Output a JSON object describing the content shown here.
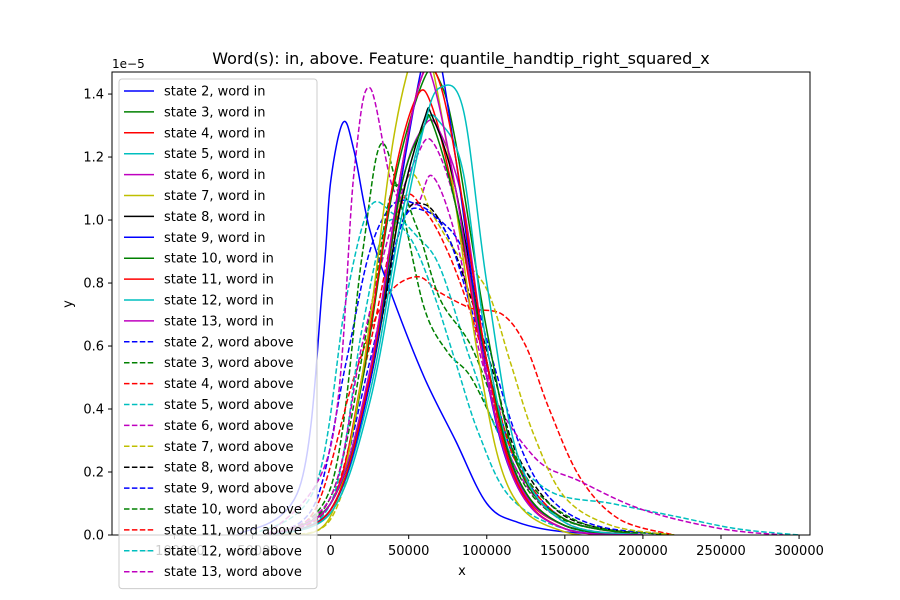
{
  "chart_data": {
    "type": "line",
    "title": "Word(s): in, above. Feature: quantile_handtip_right_squared_x",
    "xlabel": "x",
    "ylabel": "y",
    "y_offset_label": "1e−5",
    "xlim": [
      -140000,
      307000
    ],
    "ylim": [
      0,
      1.47
    ],
    "x_ticks": [
      0,
      50000,
      100000,
      150000,
      200000,
      250000,
      300000
    ],
    "x_tick_labels": [
      "0",
      "50000",
      "100000",
      "150000",
      "200000",
      "250000",
      "300000"
    ],
    "partially_hidden_x_tick_labels": [
      "−100000",
      "−50000"
    ],
    "y_ticks": [
      0.0,
      0.2,
      0.4,
      0.6,
      0.8,
      1.0,
      1.2,
      1.4
    ],
    "y_tick_labels": [
      "0.0",
      "0.2",
      "0.4",
      "0.6",
      "0.8",
      "1.0",
      "1.2",
      "1.4"
    ],
    "grid": false,
    "legend_position": "top-left",
    "series": [
      {
        "name": "state 2, word in",
        "color": "#0000ff",
        "style": "solid",
        "x": [
          -60000,
          -20000,
          -5000,
          0,
          8000,
          15000,
          25000,
          40000,
          60000,
          80000,
          100000,
          120000,
          150000,
          200000
        ],
        "y": [
          0.0,
          0.15,
          0.8,
          1.12,
          1.31,
          1.22,
          0.97,
          0.75,
          0.5,
          0.3,
          0.1,
          0.04,
          0.01,
          0.0
        ]
      },
      {
        "name": "state 3, word in",
        "color": "#008000",
        "style": "solid",
        "x": [
          -40000,
          0,
          20000,
          40000,
          60000,
          70000,
          80000,
          100000,
          120000,
          150000,
          200000
        ],
        "y": [
          0.0,
          0.1,
          0.48,
          1.1,
          1.45,
          1.44,
          1.25,
          0.65,
          0.22,
          0.05,
          0.0
        ]
      },
      {
        "name": "state 4, word in",
        "color": "#ff0000",
        "style": "solid",
        "x": [
          -40000,
          0,
          20000,
          40000,
          55000,
          65000,
          80000,
          100000,
          120000,
          150000,
          200000
        ],
        "y": [
          0.0,
          0.1,
          0.5,
          1.12,
          1.39,
          1.36,
          1.05,
          0.5,
          0.16,
          0.03,
          0.0
        ]
      },
      {
        "name": "state 5, word in",
        "color": "#00bfbf",
        "style": "solid",
        "x": [
          -40000,
          0,
          25000,
          45000,
          60000,
          70000,
          85000,
          100000,
          120000,
          150000,
          200000
        ],
        "y": [
          0.0,
          0.08,
          0.45,
          1.0,
          1.3,
          1.31,
          1.15,
          0.6,
          0.18,
          0.03,
          0.0
        ]
      },
      {
        "name": "state 6, word in",
        "color": "#bf00bf",
        "style": "solid",
        "x": [
          -40000,
          0,
          25000,
          45000,
          60000,
          70000,
          85000,
          100000,
          120000,
          150000,
          200000
        ],
        "y": [
          0.0,
          0.08,
          0.5,
          1.1,
          1.3,
          1.28,
          1.05,
          0.55,
          0.17,
          0.03,
          0.0
        ]
      },
      {
        "name": "state 7, word in",
        "color": "#bfbf00",
        "style": "solid",
        "x": [
          -30000,
          0,
          20000,
          40000,
          55000,
          62000,
          75000,
          95000,
          115000,
          150000,
          200000
        ],
        "y": [
          0.0,
          0.06,
          0.5,
          1.25,
          1.56,
          1.55,
          1.22,
          0.55,
          0.14,
          0.01,
          0.0
        ]
      },
      {
        "name": "state 8, word in",
        "color": "#000000",
        "style": "solid",
        "x": [
          -40000,
          0,
          25000,
          45000,
          60000,
          65000,
          80000,
          100000,
          120000,
          150000,
          200000
        ],
        "y": [
          0.0,
          0.08,
          0.48,
          1.05,
          1.32,
          1.33,
          1.1,
          0.55,
          0.18,
          0.03,
          0.0
        ]
      },
      {
        "name": "state 9, word in",
        "color": "#0000ff",
        "style": "solid",
        "x": [
          -40000,
          0,
          25000,
          45000,
          60000,
          68000,
          80000,
          100000,
          120000,
          150000,
          200000
        ],
        "y": [
          0.0,
          0.08,
          0.48,
          1.12,
          1.52,
          1.55,
          1.2,
          0.5,
          0.15,
          0.02,
          0.0
        ]
      },
      {
        "name": "state 10, word in",
        "color": "#008000",
        "style": "solid",
        "x": [
          -40000,
          0,
          25000,
          45000,
          60000,
          65000,
          80000,
          100000,
          120000,
          150000,
          200000
        ],
        "y": [
          0.0,
          0.1,
          0.5,
          1.1,
          1.3,
          1.31,
          1.05,
          0.55,
          0.18,
          0.03,
          0.0
        ]
      },
      {
        "name": "state 11, word in",
        "color": "#ff0000",
        "style": "solid",
        "x": [
          -40000,
          0,
          25000,
          45000,
          58000,
          68000,
          80000,
          100000,
          120000,
          150000,
          200000
        ],
        "y": [
          0.0,
          0.08,
          0.5,
          1.15,
          1.45,
          1.46,
          1.2,
          0.55,
          0.16,
          0.02,
          0.0
        ]
      },
      {
        "name": "state 12, word in",
        "color": "#00bfbf",
        "style": "solid",
        "x": [
          -40000,
          0,
          25000,
          45000,
          60000,
          70000,
          85000,
          100000,
          120000,
          150000,
          200000
        ],
        "y": [
          0.0,
          0.07,
          0.42,
          0.95,
          1.3,
          1.42,
          1.35,
          0.8,
          0.25,
          0.04,
          0.0
        ]
      },
      {
        "name": "state 13, word in",
        "color": "#bf00bf",
        "style": "solid",
        "x": [
          -40000,
          0,
          25000,
          45000,
          58000,
          65000,
          80000,
          100000,
          120000,
          150000,
          200000
        ],
        "y": [
          0.0,
          0.1,
          0.52,
          1.15,
          1.45,
          1.45,
          1.1,
          0.5,
          0.15,
          0.02,
          0.0
        ]
      },
      {
        "name": "state 2, word above",
        "color": "#0000ff",
        "style": "dashed",
        "x": [
          -40000,
          -10000,
          10000,
          25000,
          40000,
          55000,
          70000,
          85000,
          100000,
          120000,
          140000,
          170000,
          220000
        ],
        "y": [
          0.0,
          0.1,
          0.55,
          0.9,
          1.05,
          1.05,
          1.0,
          0.9,
          0.62,
          0.3,
          0.12,
          0.03,
          0.0
        ]
      },
      {
        "name": "state 3, word above",
        "color": "#008000",
        "style": "dashed",
        "x": [
          -40000,
          0,
          20000,
          32000,
          45000,
          60000,
          75000,
          90000,
          110000,
          130000,
          160000,
          220000
        ],
        "y": [
          0.0,
          0.15,
          0.88,
          1.24,
          1.05,
          0.72,
          0.58,
          0.5,
          0.3,
          0.12,
          0.03,
          0.0
        ]
      },
      {
        "name": "state 4, word above",
        "color": "#ff0000",
        "style": "dashed",
        "x": [
          -40000,
          -10000,
          15000,
          35000,
          55000,
          70000,
          90000,
          110000,
          125000,
          140000,
          160000,
          185000,
          220000
        ],
        "y": [
          0.0,
          0.08,
          0.5,
          0.75,
          0.82,
          0.77,
          0.72,
          0.7,
          0.6,
          0.4,
          0.18,
          0.05,
          0.0
        ]
      },
      {
        "name": "state 5, word above",
        "color": "#00bfbf",
        "style": "dashed",
        "x": [
          -50000,
          -10000,
          10000,
          25000,
          40000,
          55000,
          70000,
          90000,
          110000,
          140000,
          180000,
          220000,
          260000,
          300000
        ],
        "y": [
          0.0,
          0.15,
          0.75,
          1.04,
          1.02,
          0.95,
          0.85,
          0.55,
          0.3,
          0.14,
          0.1,
          0.06,
          0.02,
          0.0
        ]
      },
      {
        "name": "state 6, word above",
        "color": "#bf00bf",
        "style": "dashed",
        "x": [
          -40000,
          0,
          15000,
          25000,
          40000,
          55000,
          65000,
          80000,
          100000,
          130000,
          160000,
          200000,
          250000,
          290000
        ],
        "y": [
          0.0,
          0.28,
          1.15,
          1.42,
          1.1,
          1.05,
          1.14,
          0.95,
          0.5,
          0.25,
          0.17,
          0.08,
          0.02,
          0.0
        ]
      },
      {
        "name": "state 7, word above",
        "color": "#bfbf00",
        "style": "dashed",
        "x": [
          -30000,
          0,
          20000,
          35000,
          50000,
          65000,
          80000,
          100000,
          115000,
          130000,
          150000,
          180000,
          220000
        ],
        "y": [
          0.0,
          0.05,
          0.38,
          0.8,
          1.14,
          1.02,
          0.9,
          0.78,
          0.55,
          0.32,
          0.12,
          0.03,
          0.0
        ]
      },
      {
        "name": "state 8, word above",
        "color": "#000000",
        "style": "dashed",
        "x": [
          -40000,
          0,
          25000,
          45000,
          60000,
          75000,
          90000,
          105000,
          120000,
          150000,
          200000
        ],
        "y": [
          0.0,
          0.1,
          0.5,
          0.98,
          1.05,
          0.95,
          0.75,
          0.5,
          0.25,
          0.06,
          0.0
        ]
      },
      {
        "name": "state 9, word above",
        "color": "#0000ff",
        "style": "dashed",
        "x": [
          -40000,
          0,
          25000,
          45000,
          60000,
          75000,
          90000,
          105000,
          120000,
          150000,
          200000
        ],
        "y": [
          0.0,
          0.1,
          0.55,
          0.98,
          1.03,
          0.95,
          0.72,
          0.45,
          0.22,
          0.05,
          0.0
        ]
      },
      {
        "name": "state 10, word above",
        "color": "#008000",
        "style": "dashed",
        "x": [
          -40000,
          0,
          25000,
          40000,
          55000,
          70000,
          90000,
          110000,
          130000,
          160000,
          200000
        ],
        "y": [
          0.0,
          0.12,
          0.7,
          1.1,
          0.98,
          0.75,
          0.6,
          0.35,
          0.15,
          0.04,
          0.0
        ]
      },
      {
        "name": "state 11, word above",
        "color": "#ff0000",
        "style": "dashed",
        "x": [
          -40000,
          0,
          25000,
          45000,
          60000,
          75000,
          90000,
          105000,
          120000,
          150000,
          200000
        ],
        "y": [
          0.0,
          0.1,
          0.6,
          1.05,
          1.03,
          0.9,
          0.7,
          0.45,
          0.22,
          0.05,
          0.0
        ]
      },
      {
        "name": "state 12, word above",
        "color": "#00bfbf",
        "style": "dashed",
        "x": [
          -40000,
          0,
          20000,
          35000,
          50000,
          65000,
          80000,
          95000,
          115000,
          150000,
          200000
        ],
        "y": [
          0.0,
          0.1,
          0.65,
          0.98,
          0.95,
          0.78,
          0.55,
          0.32,
          0.12,
          0.02,
          0.0
        ]
      },
      {
        "name": "state 13, word above",
        "color": "#bf00bf",
        "style": "dashed",
        "x": [
          -40000,
          0,
          20000,
          40000,
          55000,
          65000,
          80000,
          95000,
          115000,
          150000,
          200000
        ],
        "y": [
          0.0,
          0.12,
          0.6,
          1.0,
          1.2,
          1.25,
          1.05,
          0.65,
          0.25,
          0.04,
          0.0
        ]
      }
    ]
  }
}
